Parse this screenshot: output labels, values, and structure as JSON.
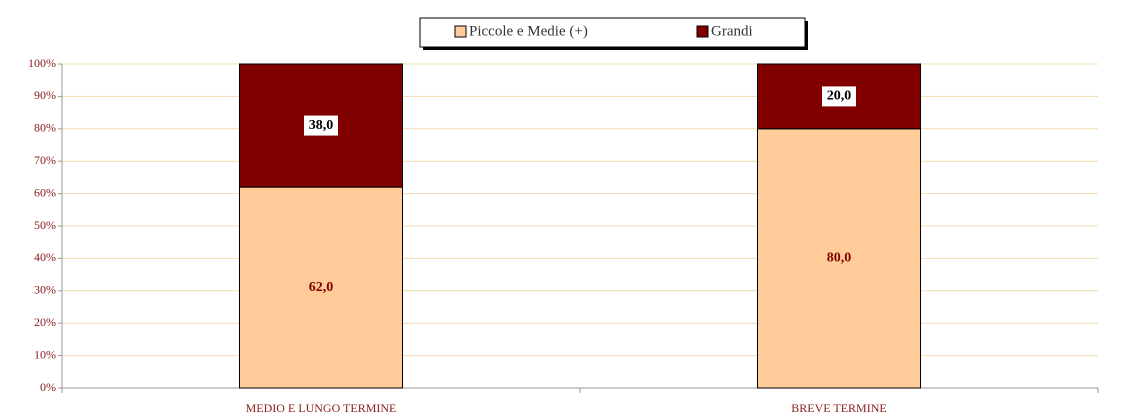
{
  "chart_data": {
    "type": "bar",
    "stacked": true,
    "categories": [
      "MEDIO E LUNGO TERMINE",
      "BREVE TERMINE"
    ],
    "series": [
      {
        "name": "Piccole e Medie (+)",
        "color": "#ffcc99",
        "values": [
          62,
          80
        ],
        "value_labels": [
          "62,0",
          "80,0"
        ]
      },
      {
        "name": "Grandi",
        "color": "#800000",
        "values": [
          38,
          20
        ],
        "value_labels": [
          "38,0",
          "20,0"
        ]
      }
    ],
    "ylim": [
      0,
      100
    ],
    "yticks": [
      {
        "value": 0,
        "label": "0%"
      },
      {
        "value": 10,
        "label": "10%"
      },
      {
        "value": 20,
        "label": "20%"
      },
      {
        "value": 30,
        "label": "30%"
      },
      {
        "value": 40,
        "label": "40%"
      },
      {
        "value": 50,
        "label": "50%"
      },
      {
        "value": 60,
        "label": "60%"
      },
      {
        "value": 70,
        "label": "70%"
      },
      {
        "value": 80,
        "label": "80%"
      },
      {
        "value": 90,
        "label": "90%"
      },
      {
        "value": 100,
        "label": "100%"
      }
    ],
    "grid": true,
    "legend": "top"
  }
}
